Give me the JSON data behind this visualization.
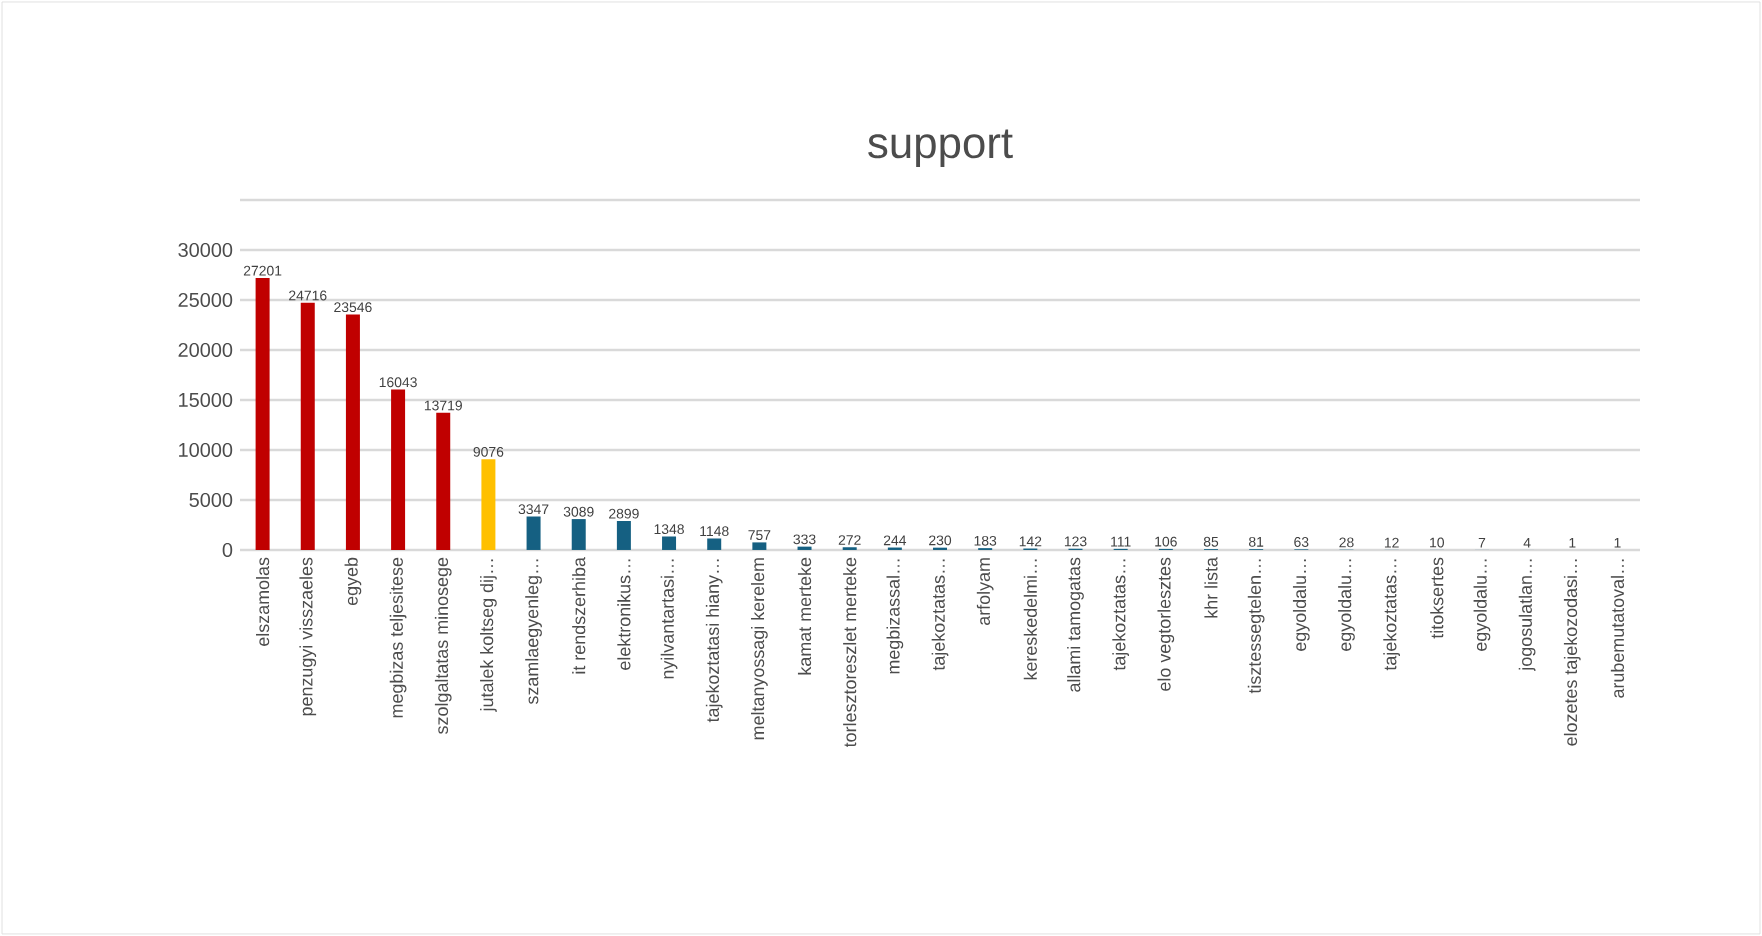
{
  "chart_data": {
    "type": "bar",
    "title": "support",
    "categories": [
      "elszamolas",
      "penzugyi visszaeles",
      "egyeb",
      "megbizas teljesitese",
      "szolgaltatas minosege",
      "jutalek koltseg dij…",
      "szamlaegyenleg…",
      "it rendszerhiba",
      "elektronikus…",
      "nyilvantartasi…",
      "tajekoztatasi hiany…",
      "meltanyossagi kerelem",
      "kamat merteke",
      "torlesztoreszlet merteke",
      "megbizassal…",
      "tajekoztatas…",
      "arfolyam",
      "kereskedelmi…",
      "allami tamogatas",
      "tajekoztatas…",
      "elo vegtorlesztes",
      "khr lista",
      "tisztessegtelen…",
      "egyoldalu…",
      "egyoldalu…",
      "tajekoztatas…",
      "titoksertes",
      "egyoldalu…",
      "jogosulatlan…",
      "elozetes tajekozodasi…",
      "arubemutatoval…"
    ],
    "values": [
      27201,
      24716,
      23546,
      16043,
      13719,
      9076,
      3347,
      3089,
      2899,
      1348,
      1148,
      757,
      333,
      272,
      244,
      230,
      183,
      142,
      123,
      111,
      106,
      85,
      81,
      63,
      28,
      12,
      10,
      7,
      4,
      1,
      1
    ],
    "colors": [
      "#c00000",
      "#c00000",
      "#c00000",
      "#c00000",
      "#c00000",
      "#ffc000",
      "#156082",
      "#156082",
      "#156082",
      "#156082",
      "#156082",
      "#156082",
      "#156082",
      "#156082",
      "#156082",
      "#156082",
      "#156082",
      "#156082",
      "#156082",
      "#156082",
      "#156082",
      "#156082",
      "#156082",
      "#156082",
      "#156082",
      "#156082",
      "#156082",
      "#156082",
      "#156082",
      "#156082",
      "#156082"
    ],
    "ylim": [
      0,
      35000
    ],
    "yticks": [
      0,
      5000,
      10000,
      15000,
      20000,
      25000,
      30000,
      {
        "value": 35000,
        "label": null
      }
    ],
    "grid": "y",
    "data_labels": true
  }
}
